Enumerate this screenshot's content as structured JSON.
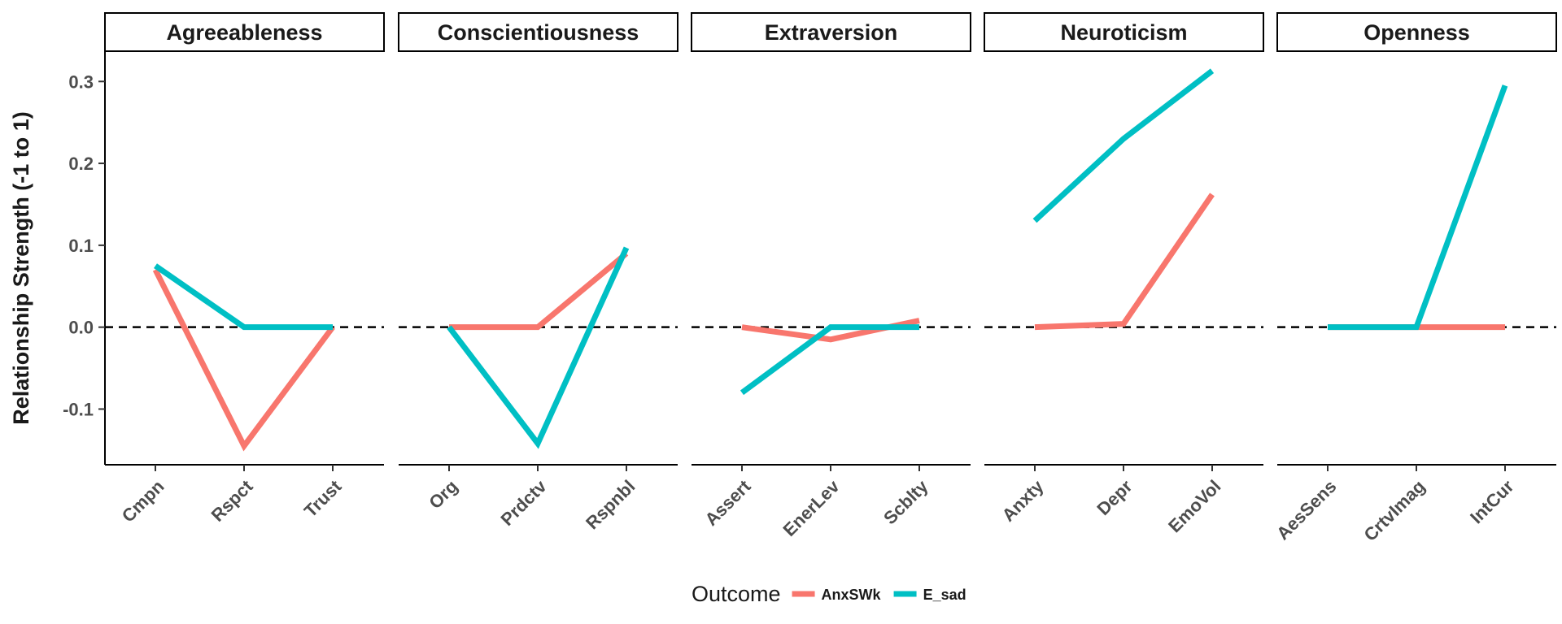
{
  "chart_data": {
    "type": "line",
    "ylabel": "Relationship Strength (-1 to 1)",
    "xlabel": "",
    "ylim": [
      -0.168,
      0.336
    ],
    "yticks": [
      -0.1,
      0.0,
      0.1,
      0.2,
      0.3
    ],
    "ytick_labels": [
      "-0.1",
      "0.0",
      "0.1",
      "0.2",
      "0.3"
    ],
    "reference_line": {
      "y": 0,
      "style": "dashed"
    },
    "grid": false,
    "legend": {
      "title": "Outcome",
      "placement": "bottom",
      "entries": [
        {
          "name": "AnxSWk",
          "color": "#F8766D"
        },
        {
          "name": "E_sad",
          "color": "#00BFC4"
        }
      ]
    },
    "facets": [
      {
        "label": "Agreeableness",
        "categories": [
          "Cmpn",
          "Rspct",
          "Trust"
        ],
        "series": [
          {
            "name": "AnxSWk",
            "values": [
              0.07,
              -0.145,
              0.0
            ]
          },
          {
            "name": "E_sad",
            "values": [
              0.075,
              0.0,
              0.0
            ]
          }
        ]
      },
      {
        "label": "Conscientiousness",
        "categories": [
          "Org",
          "Prdctv",
          "Rspnbl"
        ],
        "series": [
          {
            "name": "AnxSWk",
            "values": [
              0.0,
              0.0,
              0.09
            ]
          },
          {
            "name": "E_sad",
            "values": [
              0.0,
              -0.142,
              0.097
            ]
          }
        ]
      },
      {
        "label": "Extraversion",
        "categories": [
          "Assert",
          "EnerLev",
          "Scblty"
        ],
        "series": [
          {
            "name": "AnxSWk",
            "values": [
              0.0,
              -0.015,
              0.008
            ]
          },
          {
            "name": "E_sad",
            "values": [
              -0.08,
              0.0,
              0.0
            ]
          }
        ]
      },
      {
        "label": "Neuroticism",
        "categories": [
          "Anxty",
          "Depr",
          "EmoVol"
        ],
        "series": [
          {
            "name": "AnxSWk",
            "values": [
              0.0,
              0.004,
              0.162
            ]
          },
          {
            "name": "E_sad",
            "values": [
              0.13,
              0.23,
              0.313
            ]
          }
        ]
      },
      {
        "label": "Openness",
        "categories": [
          "AesSens",
          "CrtvImag",
          "IntCur"
        ],
        "series": [
          {
            "name": "AnxSWk",
            "values": [
              0.0,
              0.0,
              0.0
            ]
          },
          {
            "name": "E_sad",
            "values": [
              0.0,
              0.0,
              0.295
            ]
          }
        ]
      }
    ]
  }
}
